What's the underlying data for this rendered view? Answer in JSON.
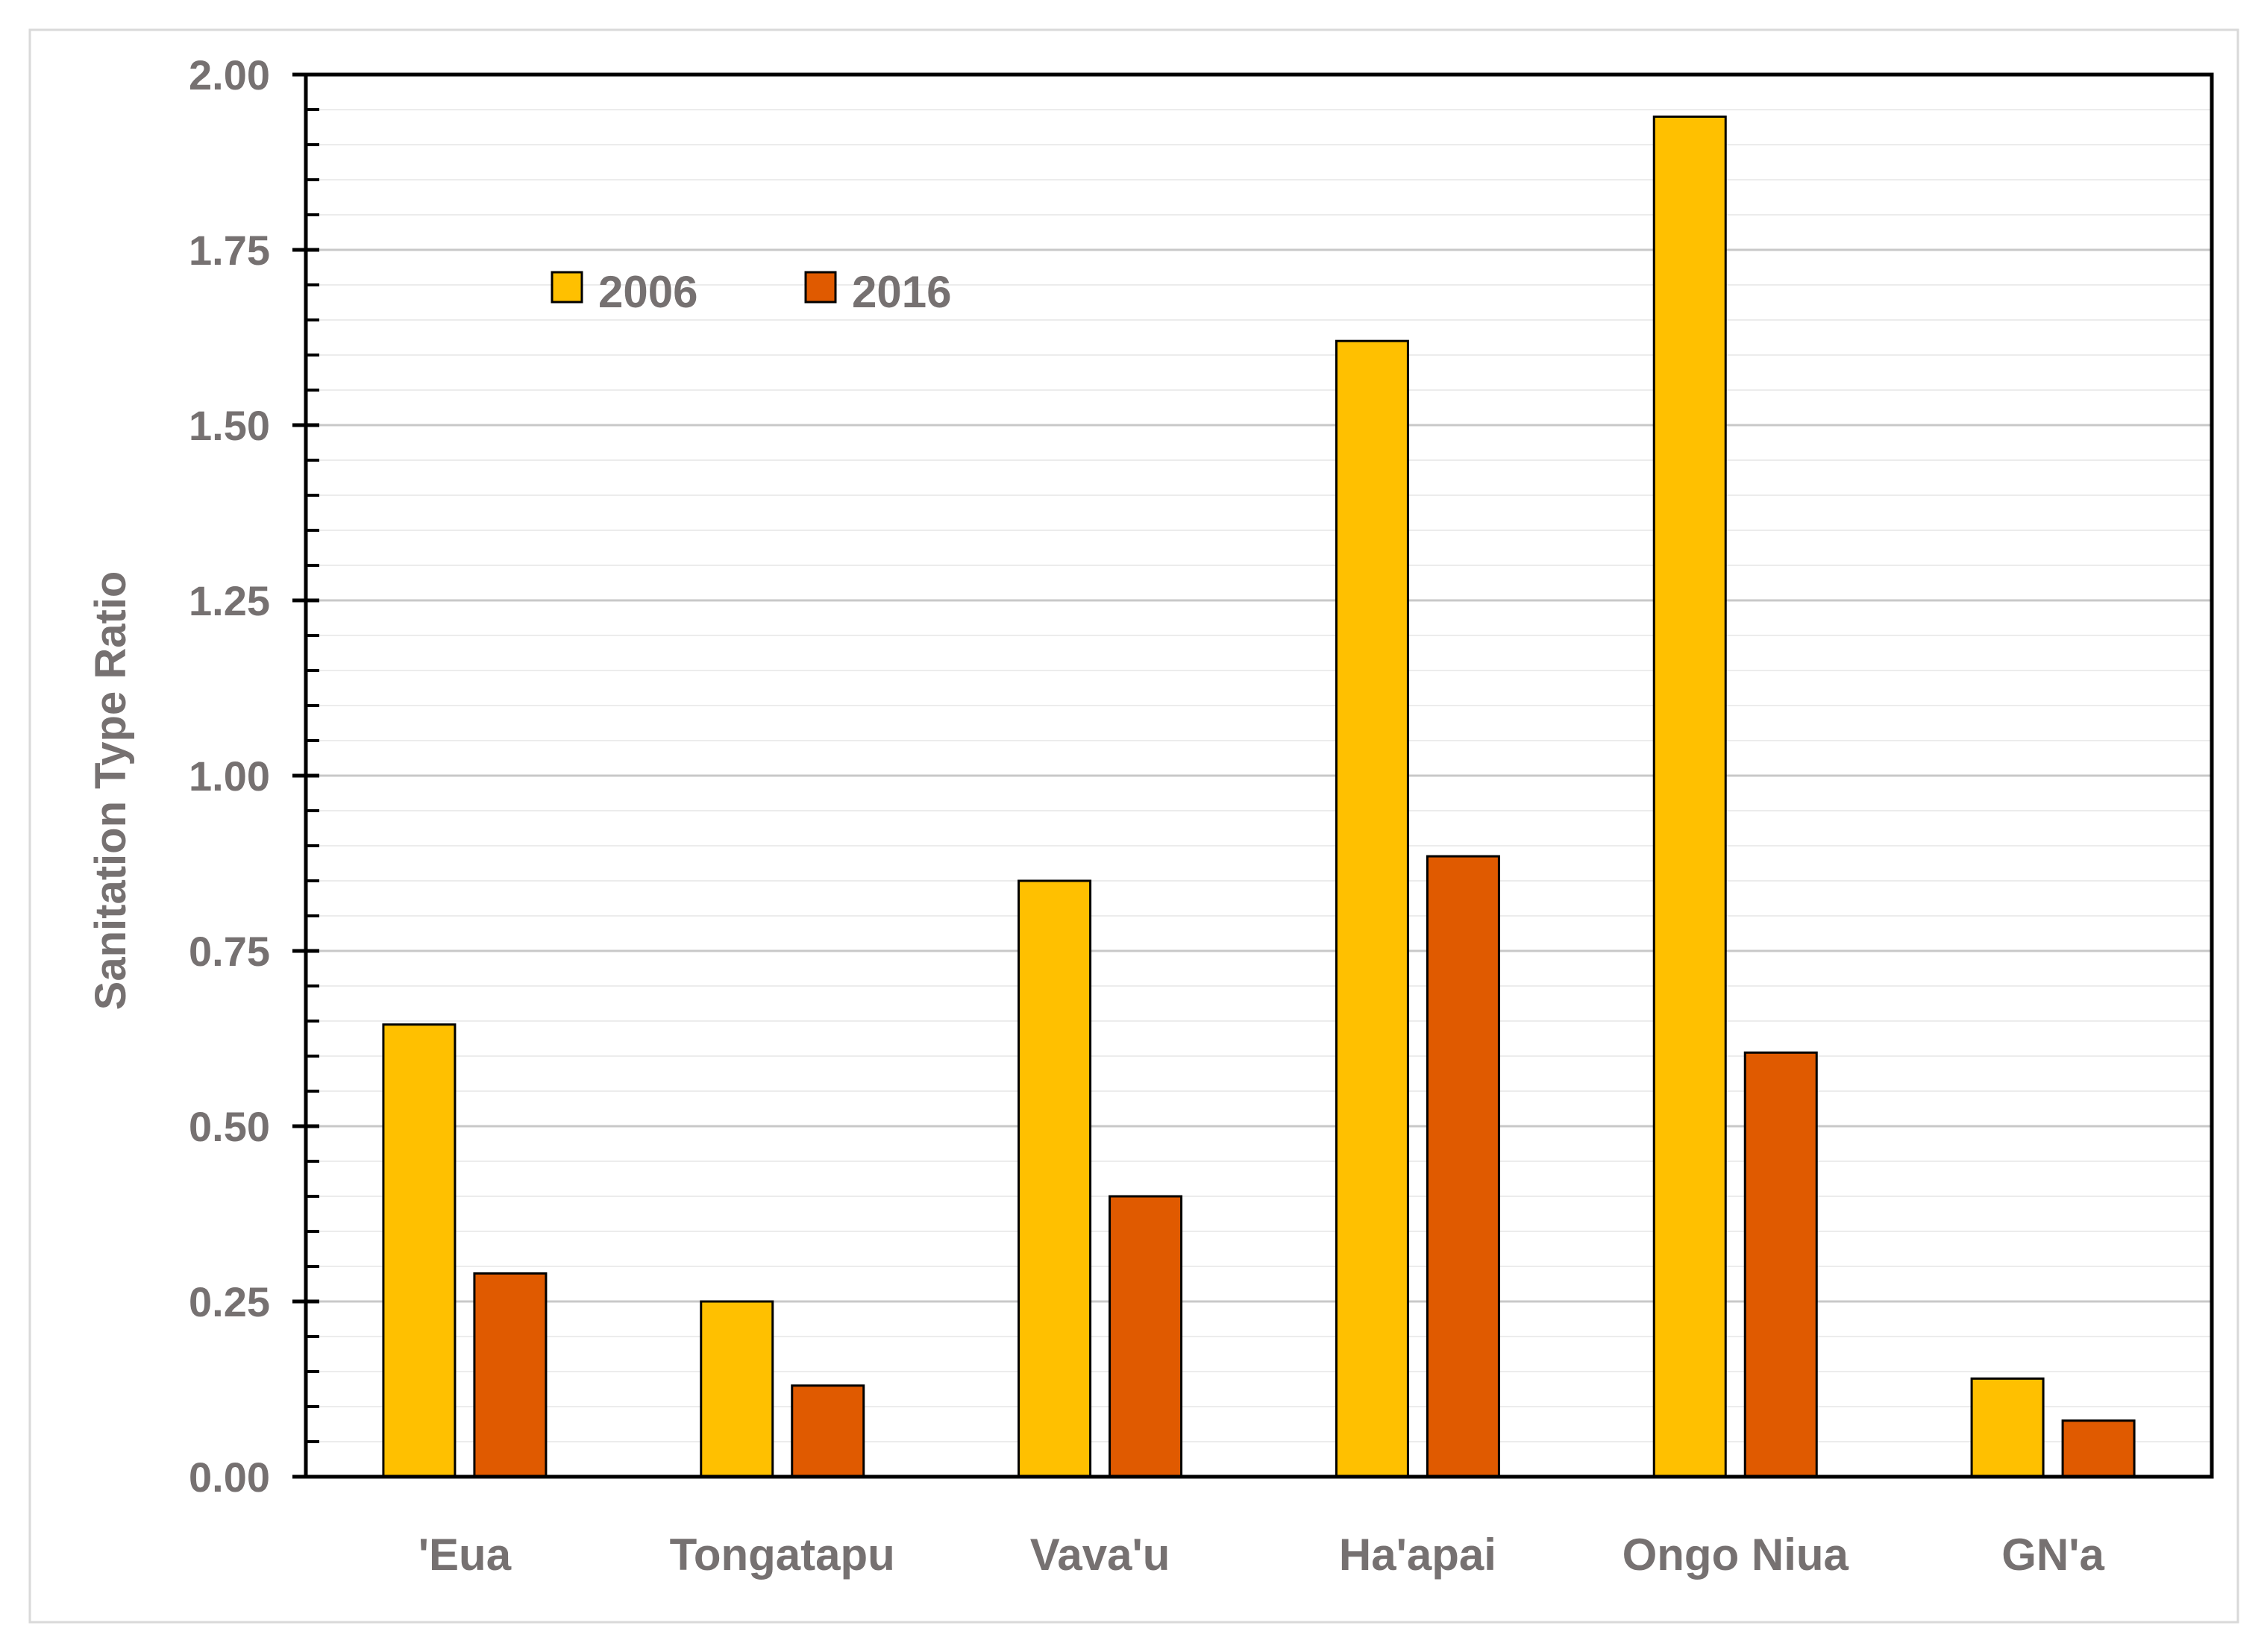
{
  "chart_data": {
    "type": "bar",
    "title": "",
    "xlabel": "",
    "ylabel": "Sanitation Type Ratio",
    "ylim": [
      0,
      2
    ],
    "yticks": [
      "0.00",
      "0.25",
      "0.50",
      "0.75",
      "1.00",
      "1.25",
      "1.50",
      "1.75",
      "2.00"
    ],
    "categories": [
      "'Eua",
      "Tongatapu",
      "Vava'u",
      "Ha'apai",
      "Ongo Niua",
      "GN'a"
    ],
    "series": [
      {
        "name": "2006",
        "color": "#FFC000",
        "values": [
          0.645,
          0.25,
          0.85,
          1.62,
          1.94,
          0.14
        ]
      },
      {
        "name": "2016",
        "color": "#E05A00",
        "values": [
          0.29,
          0.13,
          0.4,
          0.885,
          0.605,
          0.08
        ]
      }
    ],
    "grid": true,
    "legend_position": "top-left"
  }
}
